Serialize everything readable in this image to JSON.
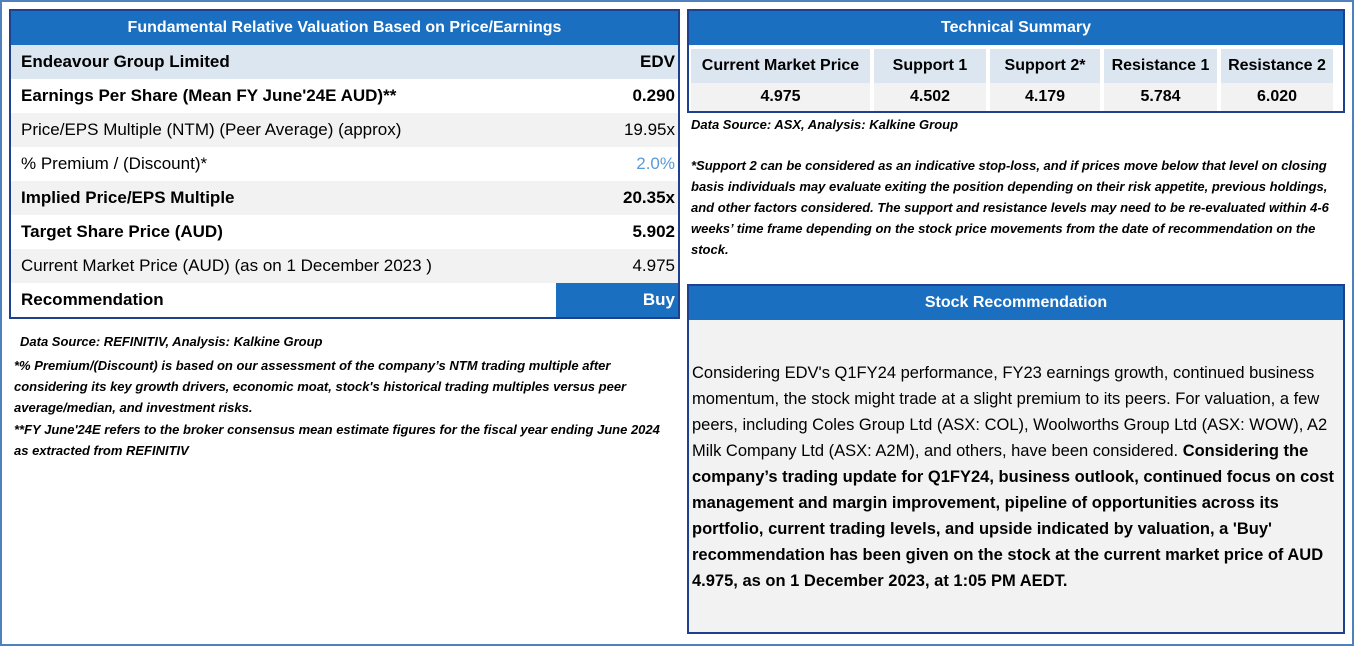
{
  "valuation": {
    "title": "Fundamental Relative Valuation Based on Price/Earnings",
    "company": "Endeavour Group Limited",
    "ticker": "EDV",
    "rows": [
      {
        "label": "Earnings Per Share (Mean FY June'24E AUD)**",
        "value": "0.290"
      },
      {
        "label": "Price/EPS Multiple (NTM) (Peer Average) (approx)",
        "value": "19.95x"
      },
      {
        "label": "% Premium / (Discount)*",
        "value": "2.0%"
      },
      {
        "label": "Implied Price/EPS Multiple",
        "value": "20.35x"
      },
      {
        "label": "Target Share Price (AUD)",
        "value": "5.902"
      },
      {
        "label": "Current Market Price (AUD) (as on 1 December 2023 )",
        "value": "4.975"
      },
      {
        "label": "Recommendation",
        "value": "Buy"
      }
    ],
    "source": "Data Source: REFINITIV, Analysis: Kalkine Group",
    "footnote1": "*% Premium/(Discount) is based on our assessment of the company’s NTM trading multiple after considering its key growth drivers, economic moat, stock's historical trading multiples versus peer average/median, and investment risks.",
    "footnote2": "**FY June'24E refers to the broker consensus mean estimate figures for the fiscal year ending June 2024 as extracted from REFINITIV"
  },
  "technical": {
    "title": "Technical Summary",
    "headers": [
      "Current Market Price",
      "Support 1",
      "Support 2*",
      "Resistance 1",
      "Resistance 2"
    ],
    "values": [
      "4.975",
      "4.502",
      "4.179",
      "5.784",
      "6.020"
    ],
    "source": "Data Source: ASX, Analysis: Kalkine Group",
    "note": "*Support 2 can be considered as an indicative stop-loss, and if prices move below that level on closing basis individuals may evaluate exiting the position depending on their risk appetite, previous holdings, and other factors considered. The support and resistance levels may need to be re-evaluated within 4-6 weeks’ time frame depending on the stock price movements from the date of recommendation on the stock."
  },
  "recommendation": {
    "title": "Stock Recommendation",
    "text_regular": "Considering EDV's Q1FY24 performance, FY23 earnings growth, continued business momentum, the stock might trade at a slight premium to its peers. For valuation, a few peers, including Coles Group Ltd (ASX: COL), Woolworths Group Ltd (ASX: WOW), A2 Milk Company Ltd (ASX: A2M), and others, have been considered. ",
    "text_bold": "Considering the company’s trading update for Q1FY24, business outlook, continued focus on cost management and margin improvement, pipeline of opportunities across its portfolio, current trading levels, and upside indicated by valuation, a 'Buy' recommendation has been given on the stock at the current market price of AUD 4.975, as on 1 December 2023, at 1:05 PM AEDT."
  }
}
